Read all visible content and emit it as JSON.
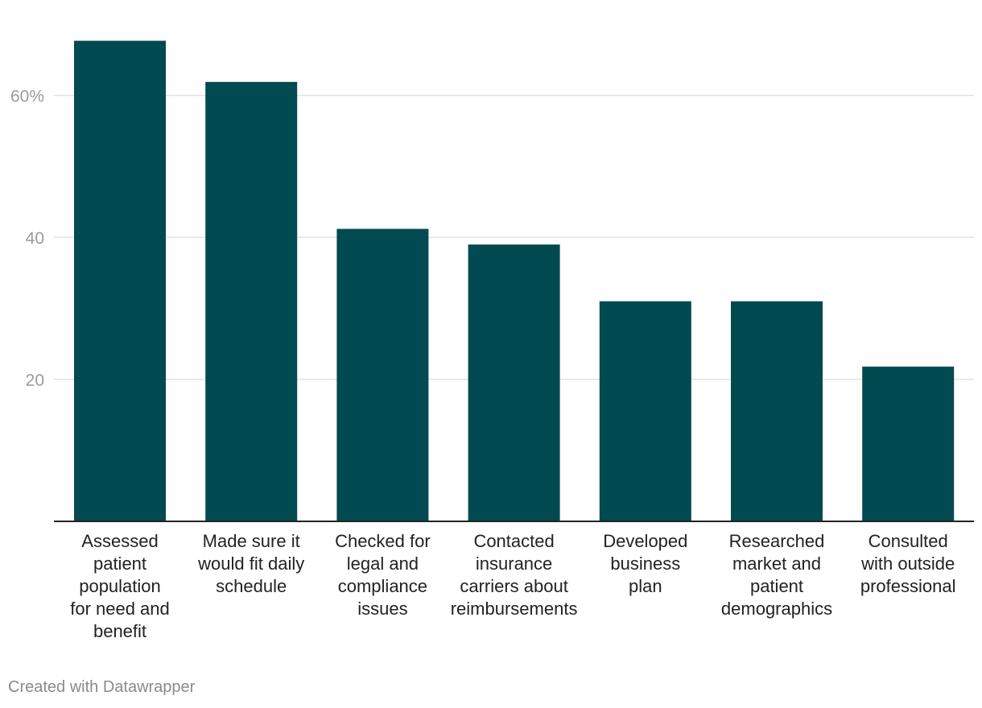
{
  "chart_data": {
    "type": "bar",
    "title": "",
    "xlabel": "",
    "ylabel": "",
    "ylim": [
      0,
      68
    ],
    "y_ticks": [
      {
        "value": 20,
        "label": "20"
      },
      {
        "value": 40,
        "label": "40"
      },
      {
        "value": 60,
        "label": "60%"
      }
    ],
    "grid": true,
    "bar_color": "#024a51",
    "categories": [
      [
        "Assessed",
        "patient",
        "population",
        "for need and",
        "benefit"
      ],
      [
        "Made sure it",
        "would fit daily",
        "schedule"
      ],
      [
        "Checked for",
        "legal and",
        "compliance",
        "issues"
      ],
      [
        "Contacted",
        "insurance",
        "carriers about",
        "reimbursements"
      ],
      [
        "Developed",
        "business",
        "plan"
      ],
      [
        "Researched",
        "market and",
        "patient",
        "demographics"
      ],
      [
        "Consulted",
        "with outside",
        "professional"
      ]
    ],
    "values": [
      67.7,
      61.9,
      41.2,
      39.0,
      31.0,
      31.0,
      21.8
    ]
  },
  "footer": {
    "credit": "Created with Datawrapper"
  }
}
